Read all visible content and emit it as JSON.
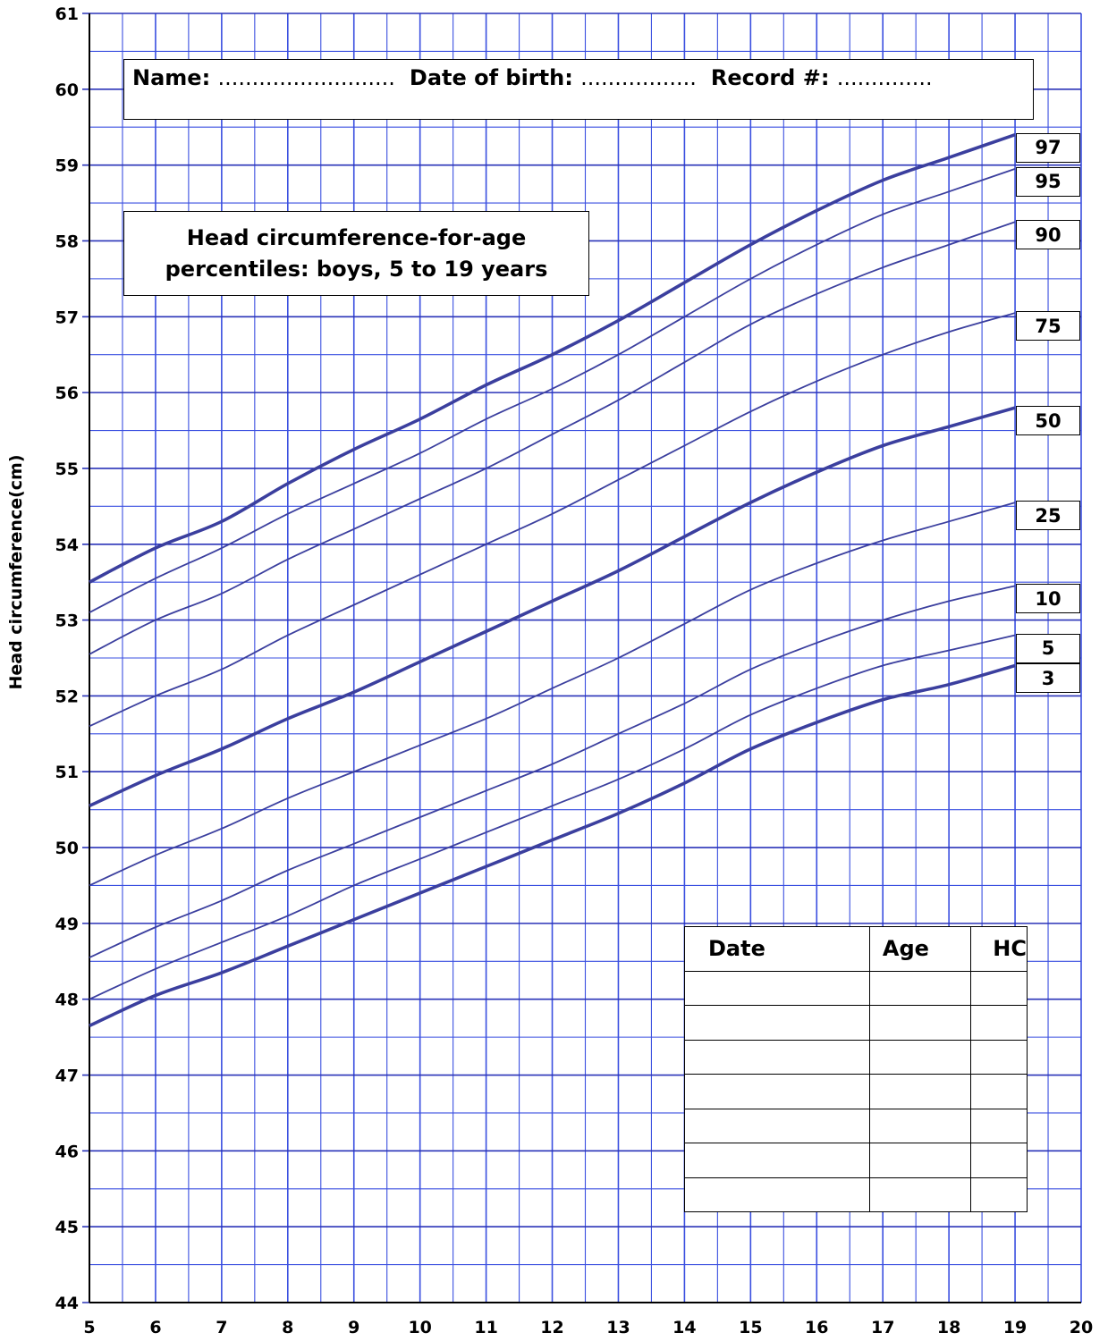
{
  "header": {
    "name_label": "Name:",
    "name_dots": "..........................",
    "dob_label": "Date of birth:",
    "dob_dots": ".................",
    "record_label": "Record #:",
    "record_dots": ".............."
  },
  "title": {
    "line1": "Head circumference-for-age",
    "line2": "percentiles: boys, 5 to 19 years"
  },
  "record_table": {
    "headers": [
      "Date",
      "Age",
      "HC"
    ],
    "empty_rows": 7
  },
  "colors": {
    "grid": "#3a4fe0",
    "curve": "#3b3f9e",
    "text": "#000000"
  },
  "chart_data": {
    "type": "line",
    "ylabel": "Head circumference(cm)",
    "xlabel": "",
    "xlim": [
      5,
      20
    ],
    "ylim": [
      44,
      61
    ],
    "xticks": [
      "5",
      "6",
      "7",
      "8",
      "9",
      "10",
      "11",
      "12",
      "13",
      "14",
      "15",
      "16",
      "17",
      "18",
      "19",
      "20"
    ],
    "yticks": [
      "44",
      "45",
      "46",
      "47",
      "48",
      "49",
      "50",
      "51",
      "52",
      "53",
      "54",
      "55",
      "56",
      "57",
      "58",
      "59",
      "60",
      "61"
    ],
    "grid": "on (0.5 year x 0.5 cm)",
    "x": [
      5,
      6,
      7,
      8,
      9,
      10,
      11,
      12,
      13,
      14,
      15,
      16,
      17,
      18,
      19
    ],
    "series": [
      {
        "name": "97",
        "bold": true,
        "values": [
          53.5,
          53.95,
          54.3,
          54.8,
          55.25,
          55.65,
          56.1,
          56.5,
          56.95,
          57.45,
          57.95,
          58.4,
          58.8,
          59.1,
          59.4
        ]
      },
      {
        "name": "95",
        "bold": false,
        "values": [
          53.1,
          53.55,
          53.95,
          54.4,
          54.8,
          55.2,
          55.65,
          56.05,
          56.5,
          57.0,
          57.5,
          57.95,
          58.35,
          58.65,
          58.95
        ]
      },
      {
        "name": "90",
        "bold": false,
        "values": [
          52.55,
          53.0,
          53.35,
          53.8,
          54.2,
          54.6,
          55.0,
          55.45,
          55.9,
          56.4,
          56.9,
          57.3,
          57.65,
          57.95,
          58.25
        ]
      },
      {
        "name": "75",
        "bold": false,
        "values": [
          51.6,
          52.0,
          52.35,
          52.8,
          53.2,
          53.6,
          54.0,
          54.4,
          54.85,
          55.3,
          55.75,
          56.15,
          56.5,
          56.8,
          57.05
        ]
      },
      {
        "name": "50",
        "bold": true,
        "values": [
          50.55,
          50.95,
          51.3,
          51.7,
          52.05,
          52.45,
          52.85,
          53.25,
          53.65,
          54.1,
          54.55,
          54.95,
          55.3,
          55.55,
          55.8
        ]
      },
      {
        "name": "25",
        "bold": false,
        "values": [
          49.5,
          49.9,
          50.25,
          50.65,
          51.0,
          51.35,
          51.7,
          52.1,
          52.5,
          52.95,
          53.4,
          53.75,
          54.05,
          54.3,
          54.55
        ]
      },
      {
        "name": "10",
        "bold": false,
        "values": [
          48.55,
          48.95,
          49.3,
          49.7,
          50.05,
          50.4,
          50.75,
          51.1,
          51.5,
          51.9,
          52.35,
          52.7,
          53.0,
          53.25,
          53.45
        ]
      },
      {
        "name": "5",
        "bold": false,
        "values": [
          48.0,
          48.4,
          48.75,
          49.1,
          49.5,
          49.85,
          50.2,
          50.55,
          50.9,
          51.3,
          51.75,
          52.1,
          52.4,
          52.6,
          52.8
        ]
      },
      {
        "name": "3",
        "bold": true,
        "values": [
          47.65,
          48.05,
          48.35,
          48.7,
          49.05,
          49.4,
          49.75,
          50.1,
          50.45,
          50.85,
          51.3,
          51.65,
          51.95,
          52.15,
          52.4
        ]
      }
    ]
  }
}
